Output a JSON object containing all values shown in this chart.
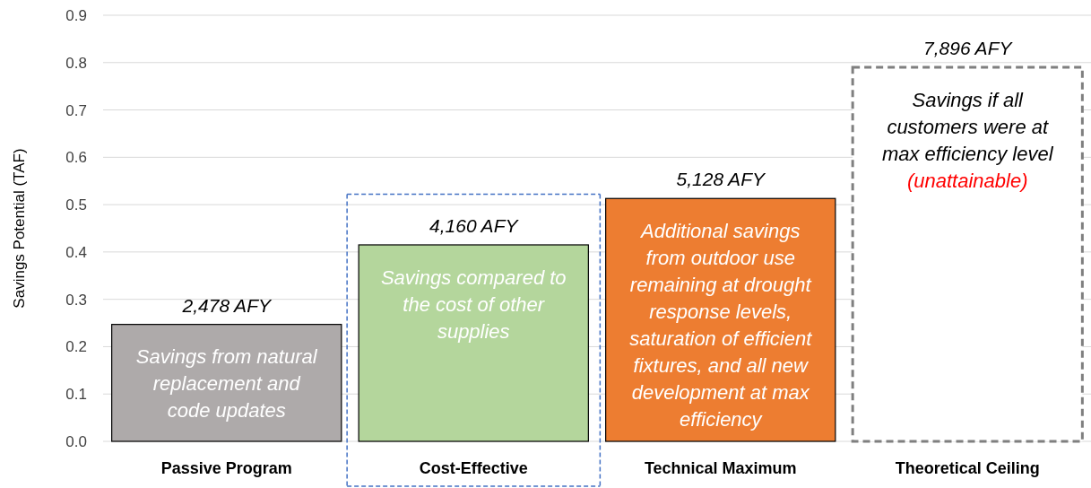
{
  "chart_data": {
    "type": "bar",
    "ylabel": "Savings Potential (TAF)",
    "categories": [
      "Passive Program",
      "Cost-Effective",
      "Technical Maximum",
      "Theoretical Ceiling"
    ],
    "values": [
      0.247,
      0.415,
      0.513,
      0.79
    ],
    "colors": [
      "#aeaaaa",
      "#b4d69c",
      "#ed7d31",
      "#ffffff"
    ],
    "ylim": [
      0,
      0.9
    ],
    "yticks": [
      {
        "value": 0,
        "label": "0.0"
      },
      {
        "value": 0.1,
        "label": "0.1"
      },
      {
        "value": 0.2,
        "label": "0.2"
      },
      {
        "value": 0.3,
        "label": "0.3"
      },
      {
        "value": 0.4,
        "label": "0.4"
      },
      {
        "value": 0.5,
        "label": "0.5"
      },
      {
        "value": 0.6,
        "label": "0.6"
      },
      {
        "value": 0.7,
        "label": "0.7"
      },
      {
        "value": 0.8,
        "label": "0.8"
      },
      {
        "value": 0.9,
        "label": "0.9"
      }
    ],
    "grid": "y",
    "annotations": [
      {
        "text": "2,478 AFY",
        "x": "Passive Program",
        "y": 0.247
      },
      {
        "text": "4,160 AFY",
        "x": "Cost-Effective",
        "y": 0.415
      },
      {
        "text": "5,128 AFY",
        "x": "Technical Maximum",
        "y": 0.513
      },
      {
        "text": "7,896 AFY",
        "x": "Theoretical Ceiling",
        "y": 0.79
      },
      "Savings from natural replacement and code updates",
      "Savings compared to the cost of other supplies",
      "Additional savings from outdoor use remaining at drought response levels, saturation of efficient fixtures, and all new development at max efficiency",
      "Savings if all customers were at max efficiency level",
      "(unattainable)"
    ]
  }
}
